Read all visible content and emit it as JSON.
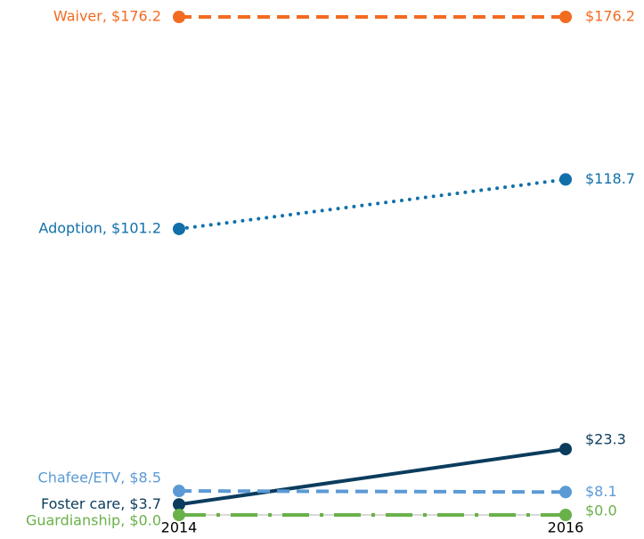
{
  "chart_data": {
    "type": "slope",
    "categories": [
      "2014",
      "2016"
    ],
    "ylim": [
      0,
      176.2
    ],
    "series": [
      {
        "name": "Waiver",
        "color": "#f26b21",
        "style": "dashed",
        "values": [
          176.2,
          176.2
        ],
        "value_labels": [
          "Waiver, $176.2",
          "$176.2"
        ]
      },
      {
        "name": "Adoption",
        "color": "#1170aa",
        "style": "dotted",
        "values": [
          101.2,
          118.7
        ],
        "value_labels": [
          "Adoption, $101.2",
          "$118.7"
        ]
      },
      {
        "name": "Foster care",
        "color": "#0b3c5d",
        "style": "solid",
        "values": [
          3.7,
          23.3
        ],
        "value_labels": [
          "Foster care, $3.7",
          "$23.3"
        ]
      },
      {
        "name": "Chafee/ETV",
        "color": "#5b9ad5",
        "style": "dashed",
        "values": [
          8.5,
          8.1
        ],
        "value_labels": [
          "Chafee/ETV, $8.5",
          "$8.1"
        ]
      },
      {
        "name": "Guardianship",
        "color": "#6ab14a",
        "style": "dashdot",
        "values": [
          0.0,
          0.0
        ],
        "value_labels": [
          "Guardianship, $0.0",
          "$0.0"
        ]
      }
    ]
  }
}
